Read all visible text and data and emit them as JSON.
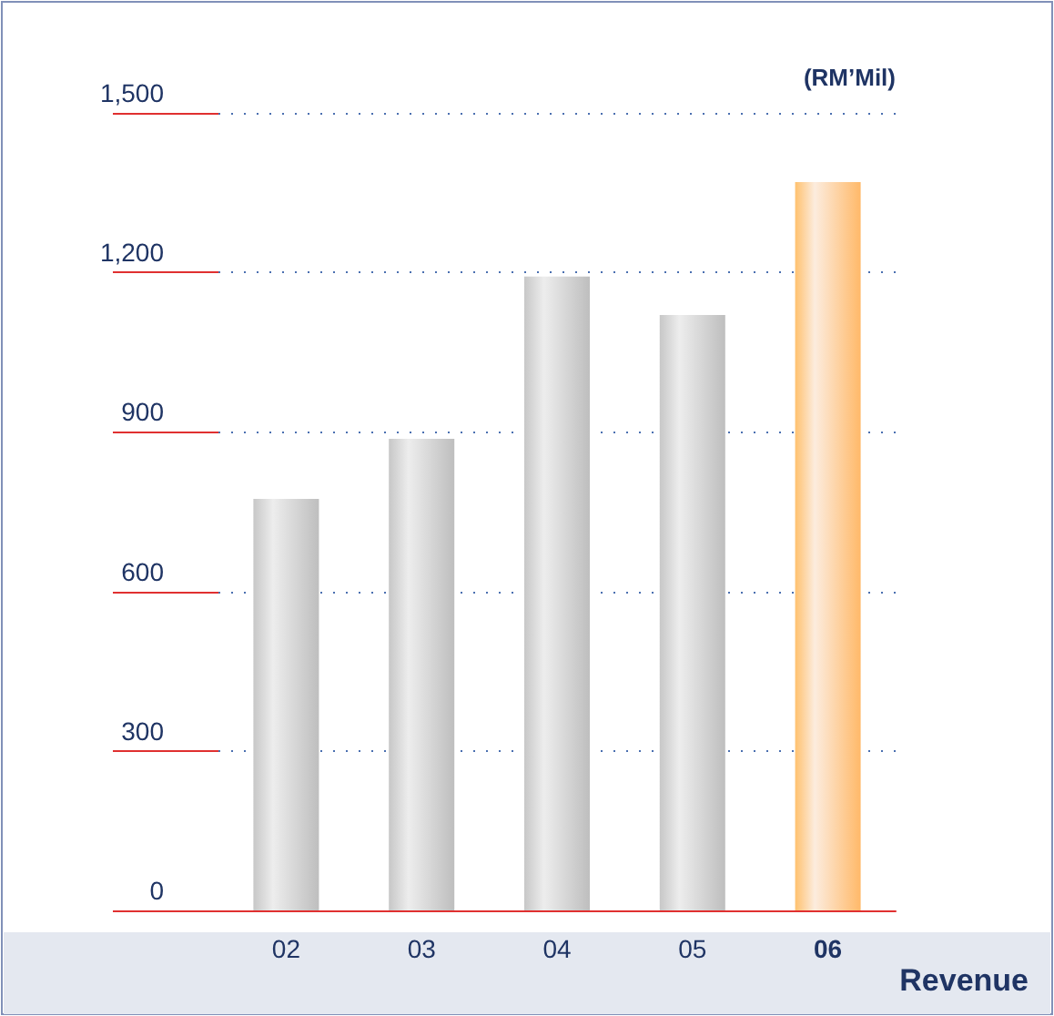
{
  "chart_data": {
    "type": "bar",
    "title": "Revenue",
    "ylabel": "(RM’Mil)",
    "categories": [
      "02",
      "03",
      "04",
      "05",
      "06"
    ],
    "values": [
      774,
      887,
      1192,
      1120,
      1370
    ],
    "colors": [
      "#a6a6a6",
      "#a6a6a6",
      "#a6a6a6",
      "#a6a6a6",
      "#f0a15c"
    ],
    "ylim": [
      0,
      1500
    ],
    "yticks": [
      {
        "value": 0,
        "label": "0"
      },
      {
        "value": 300,
        "label": "300"
      },
      {
        "value": 600,
        "label": "600"
      },
      {
        "value": 900,
        "label": "900"
      },
      {
        "value": 1200,
        "label": "1,200"
      },
      {
        "value": 1500,
        "label": "1,500"
      }
    ],
    "grid": "y"
  }
}
